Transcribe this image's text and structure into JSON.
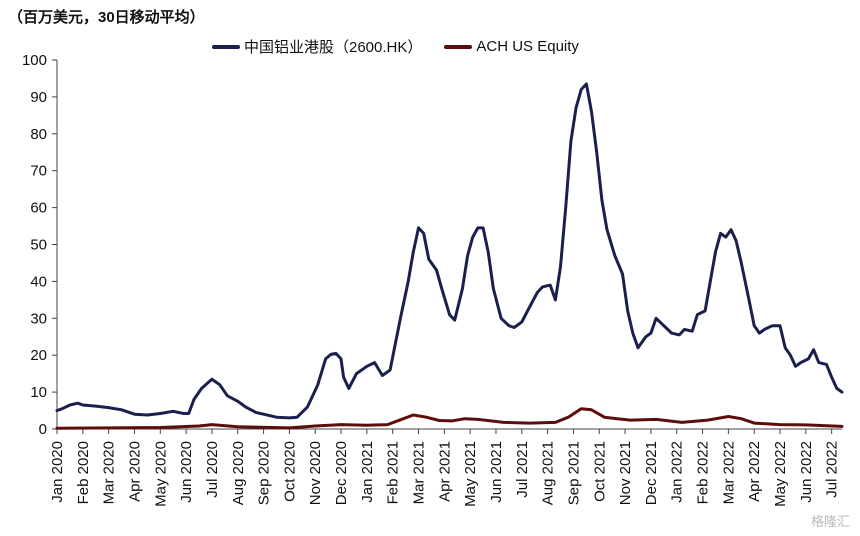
{
  "unit_label": "（百万美元，30日移动平均）",
  "watermark": "格隆汇",
  "chart_data": {
    "type": "line",
    "title": "",
    "ylabel": "（百万美元，30日移动平均）",
    "ylim": [
      0,
      100
    ],
    "yticks": [
      0,
      10,
      20,
      30,
      40,
      50,
      60,
      70,
      80,
      90,
      100
    ],
    "grid": false,
    "legend_position": "top",
    "x_tick_labels": [
      "Jan 2020",
      "Feb 2020",
      "Mar 2020",
      "Apr 2020",
      "May 2020",
      "Jun 2020",
      "Jul 2020",
      "Aug 2020",
      "Sep 2020",
      "Oct 2020",
      "Nov 2020",
      "Dec 2020",
      "Jan 2021",
      "Feb 2021",
      "Mar 2021",
      "Apr 2021",
      "May 2021",
      "Jun 2021",
      "Jul 2021",
      "Aug 2021",
      "Sep 2021",
      "Oct 2021",
      "Nov 2021",
      "Dec 2021",
      "Jan 2022",
      "Feb 2022",
      "Mar 2022",
      "Apr 2022",
      "May 2022",
      "Jun 2022",
      "Jul 2022"
    ],
    "series": [
      {
        "name": "中国铝业港股（2600.HK）",
        "color": "#1a1f4e",
        "points": [
          [
            0.0,
            5
          ],
          [
            0.2,
            5.5
          ],
          [
            0.5,
            6.5
          ],
          [
            0.8,
            7
          ],
          [
            1.0,
            6.5
          ],
          [
            1.5,
            6.2
          ],
          [
            2.0,
            5.8
          ],
          [
            2.5,
            5.2
          ],
          [
            3.0,
            4
          ],
          [
            3.5,
            3.8
          ],
          [
            4.0,
            4.2
          ],
          [
            4.5,
            4.8
          ],
          [
            4.9,
            4.2
          ],
          [
            5.1,
            4.2
          ],
          [
            5.3,
            8
          ],
          [
            5.6,
            11
          ],
          [
            6.0,
            13.5
          ],
          [
            6.3,
            12
          ],
          [
            6.6,
            9
          ],
          [
            7.0,
            7.5
          ],
          [
            7.3,
            6
          ],
          [
            7.7,
            4.5
          ],
          [
            8.0,
            4
          ],
          [
            8.5,
            3.2
          ],
          [
            9.0,
            3
          ],
          [
            9.3,
            3.2
          ],
          [
            9.7,
            6
          ],
          [
            10.1,
            12
          ],
          [
            10.4,
            19
          ],
          [
            10.6,
            20.2
          ],
          [
            10.8,
            20.5
          ],
          [
            11.0,
            19
          ],
          [
            11.1,
            14
          ],
          [
            11.3,
            11
          ],
          [
            11.6,
            15
          ],
          [
            12.0,
            17
          ],
          [
            12.3,
            18
          ],
          [
            12.6,
            14.5
          ],
          [
            12.9,
            16
          ],
          [
            13.3,
            30
          ],
          [
            13.6,
            40
          ],
          [
            13.8,
            48
          ],
          [
            14.0,
            54.5
          ],
          [
            14.2,
            53
          ],
          [
            14.4,
            46
          ],
          [
            14.7,
            43
          ],
          [
            14.9,
            38
          ],
          [
            15.2,
            31
          ],
          [
            15.4,
            29.5
          ],
          [
            15.7,
            38
          ],
          [
            15.9,
            47
          ],
          [
            16.1,
            52
          ],
          [
            16.3,
            54.5
          ],
          [
            16.5,
            54.5
          ],
          [
            16.7,
            48
          ],
          [
            16.9,
            38
          ],
          [
            17.2,
            30
          ],
          [
            17.5,
            28
          ],
          [
            17.7,
            27.5
          ],
          [
            18.0,
            29
          ],
          [
            18.3,
            33
          ],
          [
            18.6,
            37
          ],
          [
            18.8,
            38.5
          ],
          [
            19.1,
            39
          ],
          [
            19.3,
            35
          ],
          [
            19.5,
            44
          ],
          [
            19.7,
            60
          ],
          [
            19.9,
            78
          ],
          [
            20.1,
            87
          ],
          [
            20.3,
            92
          ],
          [
            20.5,
            93.5
          ],
          [
            20.7,
            86
          ],
          [
            20.9,
            75
          ],
          [
            21.1,
            62
          ],
          [
            21.3,
            54
          ],
          [
            21.6,
            47
          ],
          [
            21.9,
            42
          ],
          [
            22.1,
            32
          ],
          [
            22.3,
            26
          ],
          [
            22.5,
            22
          ],
          [
            22.8,
            25
          ],
          [
            23.0,
            26
          ],
          [
            23.2,
            30
          ],
          [
            23.5,
            28
          ],
          [
            23.8,
            26
          ],
          [
            24.1,
            25.5
          ],
          [
            24.3,
            27
          ],
          [
            24.6,
            26.5
          ],
          [
            24.8,
            31
          ],
          [
            25.1,
            32
          ],
          [
            25.3,
            40
          ],
          [
            25.5,
            48
          ],
          [
            25.7,
            53
          ],
          [
            25.9,
            52
          ],
          [
            26.1,
            54
          ],
          [
            26.3,
            51
          ],
          [
            26.5,
            45
          ],
          [
            26.8,
            35
          ],
          [
            27.0,
            28
          ],
          [
            27.2,
            26
          ],
          [
            27.4,
            27
          ],
          [
            27.7,
            28
          ],
          [
            28.0,
            28
          ],
          [
            28.2,
            22
          ],
          [
            28.4,
            20
          ],
          [
            28.6,
            17
          ],
          [
            28.8,
            18
          ],
          [
            29.1,
            19
          ],
          [
            29.3,
            21.5
          ],
          [
            29.5,
            18
          ],
          [
            29.8,
            17.5
          ],
          [
            30.0,
            14
          ],
          [
            30.2,
            11
          ],
          [
            30.4,
            10
          ]
        ]
      },
      {
        "name": "ACH US Equity",
        "color": "#5c0e0e",
        "points": [
          [
            0.0,
            0.2
          ],
          [
            2.0,
            0.3
          ],
          [
            4.0,
            0.4
          ],
          [
            5.5,
            0.8
          ],
          [
            6.0,
            1.2
          ],
          [
            7.0,
            0.6
          ],
          [
            9.0,
            0.3
          ],
          [
            10.0,
            0.8
          ],
          [
            11.0,
            1.2
          ],
          [
            12.0,
            1.0
          ],
          [
            12.8,
            1.2
          ],
          [
            13.3,
            2.5
          ],
          [
            13.8,
            3.8
          ],
          [
            14.3,
            3.2
          ],
          [
            14.8,
            2.3
          ],
          [
            15.3,
            2.2
          ],
          [
            15.8,
            2.8
          ],
          [
            16.3,
            2.6
          ],
          [
            16.8,
            2.2
          ],
          [
            17.3,
            1.8
          ],
          [
            18.3,
            1.6
          ],
          [
            19.3,
            1.8
          ],
          [
            19.8,
            3.2
          ],
          [
            20.3,
            5.5
          ],
          [
            20.7,
            5.2
          ],
          [
            21.2,
            3.2
          ],
          [
            21.7,
            2.8
          ],
          [
            22.2,
            2.4
          ],
          [
            23.2,
            2.6
          ],
          [
            24.2,
            1.8
          ],
          [
            25.2,
            2.4
          ],
          [
            26.0,
            3.4
          ],
          [
            26.5,
            2.8
          ],
          [
            27.0,
            1.6
          ],
          [
            28.0,
            1.2
          ],
          [
            29.0,
            1.1
          ],
          [
            30.4,
            0.7
          ]
        ]
      }
    ]
  }
}
